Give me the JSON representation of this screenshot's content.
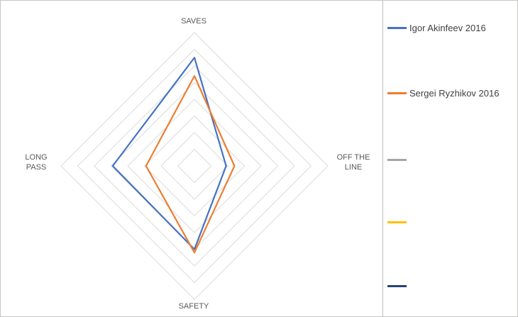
{
  "chart_data": {
    "type": "radar",
    "categories": [
      "SAVES",
      "OFF THE LINE",
      "SAFETY",
      "LONG PASS"
    ],
    "series": [
      {
        "name": "Igor Akinfeev 2016",
        "color": "#4472C4",
        "values": [
          6.5,
          1.9,
          5.0,
          4.9
        ]
      },
      {
        "name": "Sergei Ryzhikov 2016",
        "color": "#ED7D31",
        "values": [
          5.4,
          2.4,
          5.2,
          2.9
        ]
      }
    ],
    "max": 8,
    "rings": 8,
    "grid_color": "#dcdcdc",
    "grid_on": true,
    "legend_position": "right",
    "title": ""
  },
  "axis_labels": {
    "top": "SAVES",
    "right": "OFF THE\nLINE",
    "bottom": "SAFETY",
    "left": "LONG\nPASS"
  },
  "legend": {
    "entries": [
      {
        "label": "Igor Akinfeev 2016",
        "color": "#4472C4"
      },
      {
        "label": "Sergei Ryzhikov 2016",
        "color": "#ED7D31"
      },
      {
        "label": "",
        "color": "#A5A5A5"
      },
      {
        "label": "",
        "color": "#FFC000"
      },
      {
        "label": "",
        "color": "#264478"
      }
    ]
  }
}
